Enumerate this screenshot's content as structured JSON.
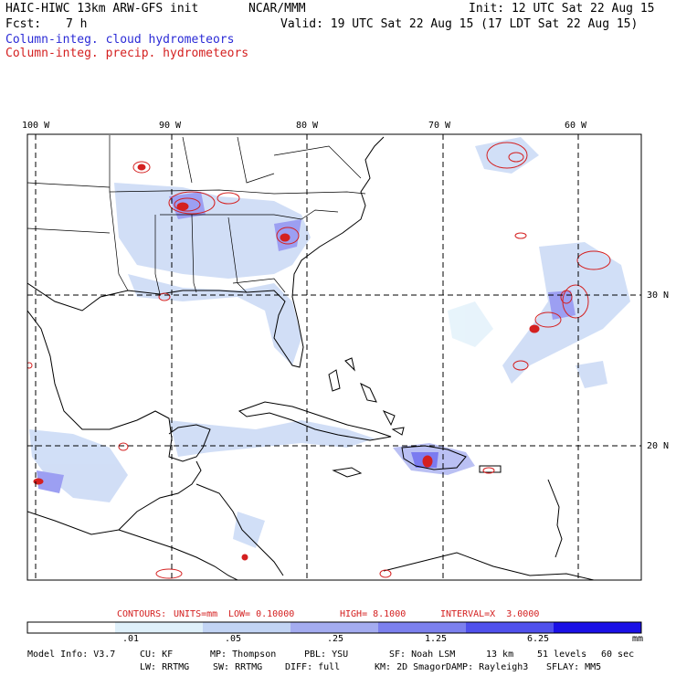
{
  "header": {
    "model_title": "HAIC-HIWC 13km ARW-GFS init",
    "org": "NCAR/MMM",
    "init": "Init: 12 UTC Sat 22 Aug 15",
    "fcst_label": "Fcst:",
    "fcst_value": "7 h",
    "valid": "Valid: 19 UTC Sat 22 Aug 15 (17 LDT Sat 22 Aug 15)",
    "legend_cloud": "Column-integ. cloud hydrometeors",
    "legend_precip": "Column-integ. precip. hydrometeors"
  },
  "map": {
    "lon_labels": [
      "100 W",
      "90 W",
      "80 W",
      "70 W",
      "60 W"
    ],
    "lat_labels": [
      "30 N",
      "20 N"
    ]
  },
  "contour_info": {
    "contours": "CONTOURS:",
    "units": "UNITS=mm",
    "low": "LOW= 0.10000",
    "high": "HIGH= 8.1000",
    "interval": "INTERVAL=X  3.0000"
  },
  "colorbar": {
    "ticks": [
      ".01",
      ".05",
      ".25",
      "1.25",
      "6.25"
    ],
    "unit": "mm",
    "colors": [
      "#ffffff",
      "#dff0fa",
      "#c2d4f4",
      "#a4acf0",
      "#7c80ee",
      "#4f50ec",
      "#1a10e6"
    ]
  },
  "footer": {
    "line1": [
      "Model Info: V3.7",
      "CU: KF",
      "MP: Thompson",
      "PBL: YSU",
      "SF: Noah LSM",
      "13 km",
      "51 levels",
      "60 sec"
    ],
    "line2": [
      "LW: RRTMG",
      "SW: RRTMG",
      "DIFF: full",
      "KM: 2D Smagor",
      "DAMP: Rayleigh3",
      "SFLAY: MM5"
    ]
  }
}
